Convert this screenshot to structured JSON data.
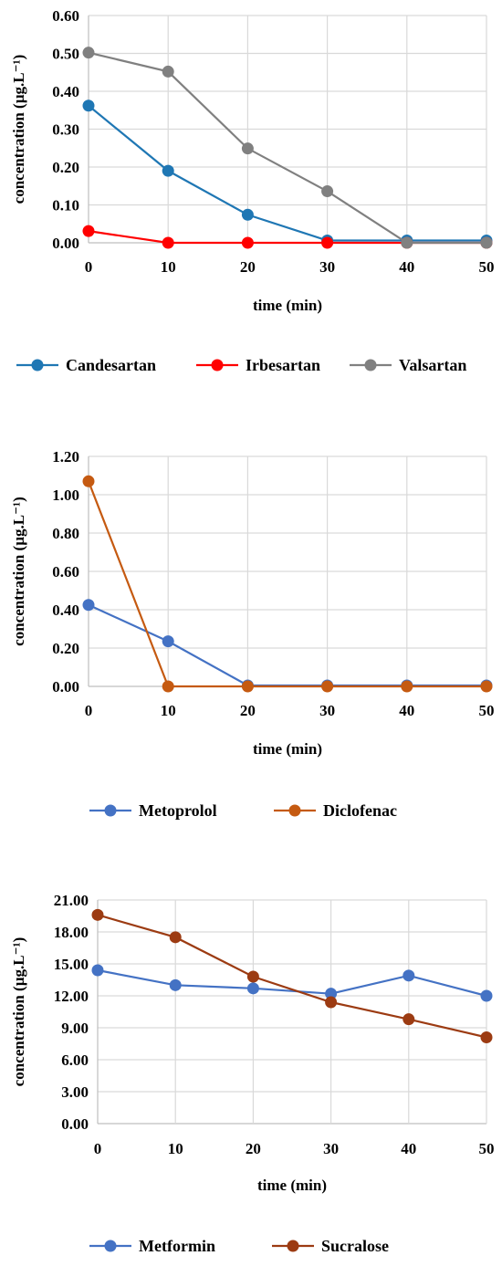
{
  "charts": [
    {
      "ylabel": "concentration (µg.L⁻¹)",
      "xlabel": "time (min)",
      "y_tick_labels": [
        "0.00",
        "0.10",
        "0.20",
        "0.30",
        "0.40",
        "0.50",
        "0.60"
      ],
      "x_tick_labels": [
        "0",
        "10",
        "20",
        "30",
        "40",
        "50"
      ],
      "legend": [
        "Candesartan",
        "Irbesartan",
        "Valsartan"
      ]
    },
    {
      "ylabel": "concentration (µg.L⁻¹)",
      "xlabel": "time (min)",
      "y_tick_labels": [
        "0.00",
        "0.20",
        "0.40",
        "0.60",
        "0.80",
        "1.00",
        "1.20"
      ],
      "x_tick_labels": [
        "0",
        "10",
        "20",
        "30",
        "40",
        "50"
      ],
      "legend": [
        "Metoprolol",
        "Diclofenac"
      ]
    },
    {
      "ylabel": "concentration (µg.L⁻¹)",
      "xlabel": "time (min)",
      "y_tick_labels": [
        "0.00",
        "3.00",
        "6.00",
        "9.00",
        "12.00",
        "15.00",
        "18.00",
        "21.00"
      ],
      "x_tick_labels": [
        "0",
        "10",
        "20",
        "30",
        "40",
        "50"
      ],
      "legend": [
        "Metformin",
        "Sucralose"
      ]
    }
  ],
  "chart_data": [
    {
      "type": "line",
      "x": [
        0,
        10,
        20,
        30,
        40,
        50
      ],
      "xlabel": "time (min)",
      "ylabel": "concentration (µg.L⁻¹)",
      "ylim": [
        0,
        0.6
      ],
      "grid": true,
      "legend_position": "bottom",
      "series": [
        {
          "name": "Candesartan",
          "color": "#1f77b4",
          "values": [
            0.362,
            0.19,
            0.074,
            0.006,
            0.006,
            0.006
          ]
        },
        {
          "name": "Irbesartan",
          "color": "#ff0000",
          "values": [
            0.031,
            0.0,
            0.0,
            0.0,
            0.0,
            0.0
          ]
        },
        {
          "name": "Valsartan",
          "color": "#808080",
          "values": [
            0.502,
            0.452,
            0.249,
            0.136,
            0.0,
            0.0
          ]
        }
      ]
    },
    {
      "type": "line",
      "x": [
        0,
        10,
        20,
        30,
        40,
        50
      ],
      "xlabel": "time (min)",
      "ylabel": "concentration (µg.L⁻¹)",
      "ylim": [
        0,
        1.2
      ],
      "grid": true,
      "legend_position": "bottom",
      "series": [
        {
          "name": "Metoprolol",
          "color": "#4472c4",
          "values": [
            0.425,
            0.235,
            0.005,
            0.005,
            0.005,
            0.005
          ]
        },
        {
          "name": "Diclofenac",
          "color": "#c55a11",
          "values": [
            1.07,
            0.0,
            0.0,
            0.0,
            0.0,
            0.0
          ]
        }
      ]
    },
    {
      "type": "line",
      "x": [
        0,
        10,
        20,
        30,
        40,
        50
      ],
      "xlabel": "time (min)",
      "ylabel": "concentration (µg.L⁻¹)",
      "ylim": [
        0,
        21
      ],
      "grid": true,
      "legend_position": "bottom",
      "series": [
        {
          "name": "Metformin",
          "color": "#4472c4",
          "values": [
            14.4,
            13.0,
            12.7,
            12.2,
            13.9,
            12.0
          ]
        },
        {
          "name": "Sucralose",
          "color": "#9c3b12",
          "values": [
            19.6,
            17.5,
            13.8,
            11.4,
            9.8,
            8.1
          ]
        }
      ]
    }
  ]
}
